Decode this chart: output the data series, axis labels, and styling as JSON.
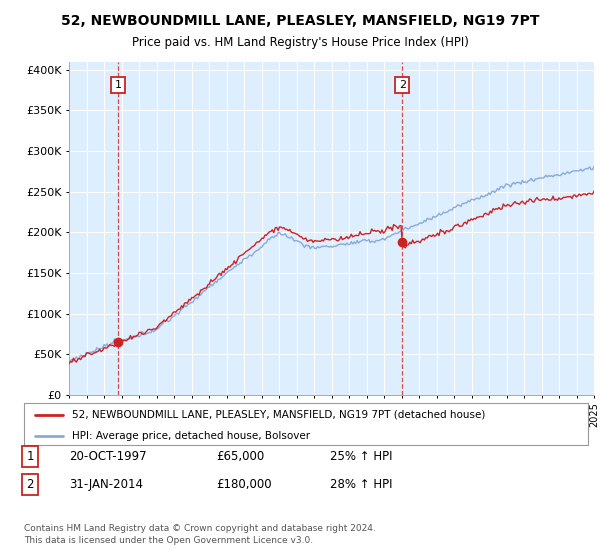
{
  "title": "52, NEWBOUNDMILL LANE, PLEASLEY, MANSFIELD, NG19 7PT",
  "subtitle": "Price paid vs. HM Land Registry's House Price Index (HPI)",
  "ylim": [
    0,
    410000
  ],
  "yticks": [
    0,
    50000,
    100000,
    150000,
    200000,
    250000,
    300000,
    350000,
    400000
  ],
  "ytick_labels": [
    "£0",
    "£50K",
    "£100K",
    "£150K",
    "£200K",
    "£250K",
    "£300K",
    "£350K",
    "£400K"
  ],
  "hpi_color": "#88aadd",
  "price_color": "#cc2222",
  "background_color": "#ffffff",
  "chart_bg_color": "#ddeeff",
  "grid_color": "#ffffff",
  "legend_label_red": "52, NEWBOUNDMILL LANE, PLEASLEY, MANSFIELD, NG19 7PT (detached house)",
  "legend_label_blue": "HPI: Average price, detached house, Bolsover",
  "transaction1_date": "20-OCT-1997",
  "transaction1_price": "£65,000",
  "transaction1_hpi": "25% ↑ HPI",
  "transaction2_date": "31-JAN-2014",
  "transaction2_price": "£180,000",
  "transaction2_hpi": "28% ↑ HPI",
  "footer": "Contains HM Land Registry data © Crown copyright and database right 2024.\nThis data is licensed under the Open Government Licence v3.0.",
  "x_start_year": 1995,
  "x_end_year": 2025
}
